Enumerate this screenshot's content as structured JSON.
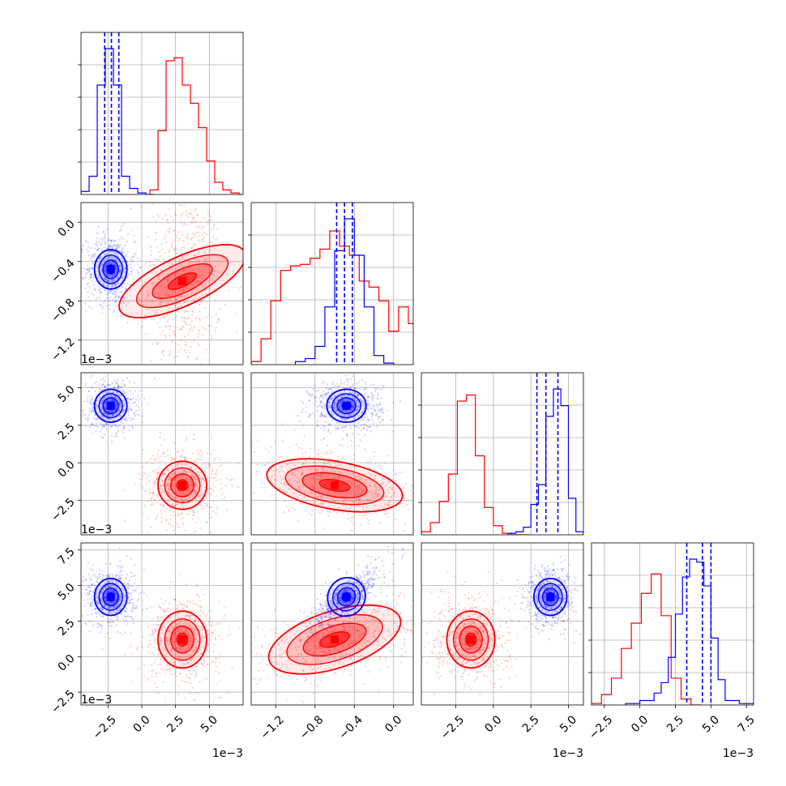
{
  "chart_data": {
    "type": "corner",
    "description_colors": {
      "series_a": "#0000ff",
      "series_b": "#ff0000"
    },
    "grid": true,
    "scale_note": "1e−3",
    "parameters": [
      {
        "range": [
          -4.5,
          7.5
        ],
        "ticks": [
          -2.5,
          0.0,
          2.5,
          5.0
        ],
        "tick_labels": [
          "−2.5",
          "0.0",
          "2.5",
          "5.0"
        ]
      },
      {
        "range": [
          -1.45,
          0.2
        ],
        "ticks": [
          -1.2,
          -0.8,
          -0.4,
          0.0
        ],
        "tick_labels": [
          "−1.2",
          "−0.8",
          "−0.4",
          "0.0"
        ]
      },
      {
        "range": [
          -4.8,
          6.0
        ],
        "ticks": [
          -2.5,
          0.0,
          2.5,
          5.0
        ],
        "tick_labels": [
          "−2.5",
          "0.0",
          "2.5",
          "5.0"
        ]
      },
      {
        "range": [
          -3.4,
          8.0
        ],
        "ticks": [
          -2.5,
          0.0,
          2.5,
          5.0,
          7.5
        ],
        "tick_labels": [
          "−2.5",
          "0.0",
          "2.5",
          "5.0",
          "7.5"
        ]
      }
    ],
    "histograms": [
      {
        "param": 0,
        "blue": {
          "bin_edges": [
            -4.5,
            -3.9,
            -3.3,
            -2.7,
            -2.1,
            -1.5,
            -0.9,
            -0.3,
            0.3,
            0.9
          ],
          "counts": [
            2,
            12,
            72,
            96,
            72,
            12,
            4,
            1,
            0
          ],
          "quantiles": [
            -2.75,
            -2.25,
            -1.7
          ]
        },
        "red": {
          "bin_edges": [
            0.6,
            1.2,
            1.8,
            2.4,
            3.0,
            3.6,
            4.2,
            4.8,
            5.4,
            6.0,
            6.6,
            7.2,
            7.8
          ],
          "counts": [
            3,
            42,
            88,
            90,
            72,
            60,
            44,
            22,
            8,
            3,
            1,
            0
          ]
        }
      },
      {
        "param": 1,
        "blue": {
          "bin_edges": [
            -1.0,
            -0.9,
            -0.8,
            -0.7,
            -0.6,
            -0.5,
            -0.4,
            -0.3,
            -0.2,
            -0.1,
            0.0
          ],
          "counts": [
            2,
            4,
            12,
            38,
            75,
            96,
            72,
            38,
            6,
            1
          ],
          "quantiles": [
            -0.58,
            -0.5,
            -0.42
          ]
        },
        "red": {
          "bin_edges": [
            -1.45,
            -1.35,
            -1.25,
            -1.15,
            -1.05,
            -0.95,
            -0.85,
            -0.75,
            -0.65,
            -0.55,
            -0.45,
            -0.35,
            -0.25,
            -0.15,
            -0.05,
            0.05,
            0.15,
            0.25
          ],
          "counts": [
            2,
            17,
            42,
            62,
            65,
            66,
            70,
            76,
            88,
            78,
            72,
            55,
            51,
            42,
            22,
            38,
            27
          ]
        }
      },
      {
        "param": 2,
        "blue": {
          "bin_edges": [
            1.0,
            1.5,
            2.0,
            2.5,
            3.0,
            3.5,
            4.0,
            4.5,
            5.0,
            5.5,
            6.0
          ],
          "counts": [
            1,
            2,
            5,
            20,
            33,
            78,
            96,
            85,
            24,
            2
          ],
          "quantiles": [
            2.9,
            3.5,
            4.3
          ]
        },
        "red": {
          "bin_edges": [
            -4.8,
            -4.2,
            -3.6,
            -3.0,
            -2.4,
            -1.8,
            -1.2,
            -0.6,
            0.0,
            0.6,
            1.2,
            1.8,
            2.4
          ],
          "counts": [
            2,
            8,
            22,
            40,
            88,
            92,
            52,
            18,
            6,
            1,
            0,
            0
          ]
        }
      },
      {
        "param": 3,
        "blue": {
          "bin_edges": [
            -1.0,
            0.0,
            1.0,
            1.5,
            2.0,
            2.5,
            3.0,
            3.5,
            4.0,
            4.5,
            5.0,
            5.5,
            6.0,
            7.0,
            8.0
          ],
          "counts": [
            1,
            3,
            8,
            15,
            32,
            61,
            86,
            98,
            96,
            80,
            45,
            17,
            3,
            1
          ],
          "quantiles": [
            3.3,
            4.4,
            5.0
          ]
        },
        "red": {
          "bin_edges": [
            -3.4,
            -2.7,
            -2.0,
            -1.3,
            -0.6,
            0.1,
            0.8,
            1.5,
            2.2,
            2.9,
            3.6,
            4.3
          ],
          "counts": [
            1,
            7,
            18,
            38,
            55,
            75,
            88,
            60,
            18,
            4,
            0
          ]
        }
      }
    ],
    "clusters": {
      "blue": {
        "center": [
          -2.3,
          -0.48,
          3.8,
          4.2
        ],
        "sd": [
          0.6,
          0.1,
          0.55,
          0.65
        ],
        "spread": [
          1.5,
          1.8,
          1.5,
          1.6
        ]
      },
      "red": {
        "center": [
          3.0,
          -0.6,
          -1.5,
          1.2
        ],
        "sd": [
          0.9,
          0.35,
          0.8,
          1.0
        ],
        "spread": [
          1.6,
          1.3,
          1.6,
          1.5
        ]
      }
    },
    "ylabel_rows": [
      1,
      2,
      3
    ],
    "xlabel_cols": [
      0,
      1,
      2,
      3
    ]
  }
}
